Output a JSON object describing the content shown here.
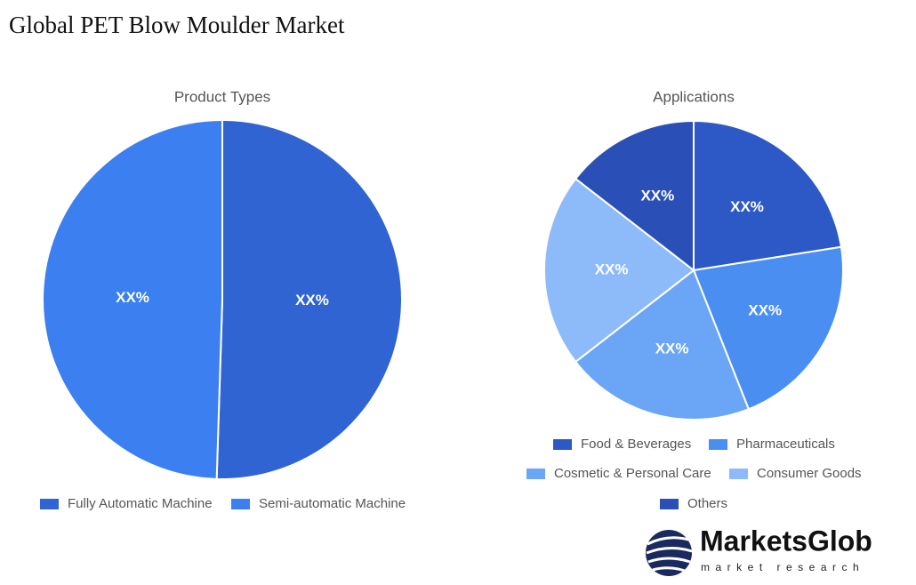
{
  "title": "Global PET Blow Moulder Market",
  "chart_data": [
    {
      "type": "pie",
      "title": "Product Types",
      "categories": [
        "Fully Automatic Machine",
        "Semi-automatic Machine"
      ],
      "values": [
        50.5,
        49.5
      ],
      "value_labels": [
        "XX%",
        "XX%"
      ],
      "colors": [
        "#2f64d2",
        "#3b7ff0"
      ]
    },
    {
      "type": "pie",
      "title": "Applications",
      "categories": [
        "Food & Beverages",
        "Pharmaceuticals",
        "Cosmetic & Personal Care",
        "Consumer Goods",
        "Others"
      ],
      "values": [
        22.5,
        21.5,
        20.5,
        21,
        14.5
      ],
      "value_labels": [
        "XX%",
        "XX%",
        "XX%",
        "XX%",
        "XX%"
      ],
      "colors": [
        "#2c59c6",
        "#4a8ef2",
        "#6aa5f6",
        "#8dbaf9",
        "#2a50b8"
      ]
    }
  ],
  "logo": {
    "name": "MarketsGlob",
    "tagline": "market research"
  }
}
